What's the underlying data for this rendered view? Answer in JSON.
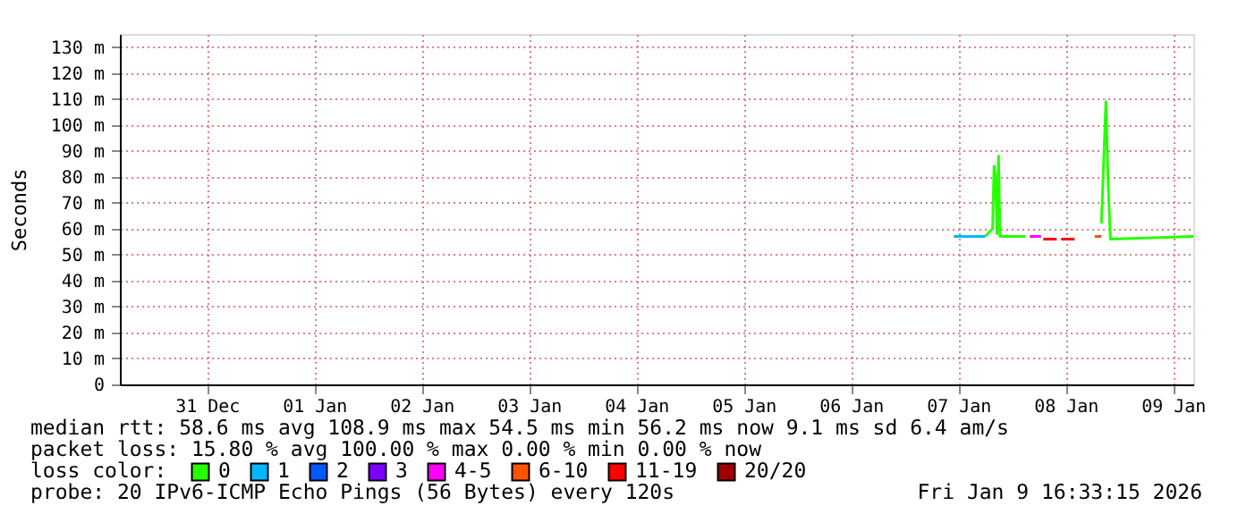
{
  "chart_data": {
    "type": "line",
    "ylabel": "Seconds",
    "xlim": [
      "2025-12-30T16:33",
      "2026-01-09T16:33"
    ],
    "xticks": [
      {
        "value": "2025-12-31T12:00",
        "label": "31 Dec"
      },
      {
        "value": "2026-01-01T12:00",
        "label": "01 Jan"
      },
      {
        "value": "2026-01-02T12:00",
        "label": "02 Jan"
      },
      {
        "value": "2026-01-03T12:00",
        "label": "03 Jan"
      },
      {
        "value": "2026-01-04T12:00",
        "label": "04 Jan"
      },
      {
        "value": "2026-01-05T12:00",
        "label": "05 Jan"
      },
      {
        "value": "2026-01-06T12:00",
        "label": "06 Jan"
      },
      {
        "value": "2026-01-07T12:00",
        "label": "07 Jan"
      },
      {
        "value": "2026-01-08T12:00",
        "label": "08 Jan"
      },
      {
        "value": "2026-01-09T12:00",
        "label": "09 Jan"
      }
    ],
    "ylim": [
      0,
      135
    ],
    "yticks": [
      0,
      {
        "value": 10,
        "label": "10 m"
      },
      {
        "value": 20,
        "label": "20 m"
      },
      {
        "value": 30,
        "label": "30 m"
      },
      {
        "value": 40,
        "label": "40 m"
      },
      {
        "value": 50,
        "label": "50 m"
      },
      {
        "value": 60,
        "label": "60 m"
      },
      {
        "value": 70,
        "label": "70 m"
      },
      {
        "value": 80,
        "label": "80 m"
      },
      {
        "value": 90,
        "label": "90 m"
      },
      {
        "value": 100,
        "label": "100 m"
      },
      {
        "value": 110,
        "label": "110 m"
      },
      {
        "value": 120,
        "label": "120 m"
      },
      {
        "value": 130,
        "label": "130 m"
      }
    ],
    "grid": true,
    "legend": "bottom",
    "legend_title": "loss color:",
    "marker": "none",
    "line_style": "solid",
    "series": [
      {
        "name": "0",
        "color": "#26ff00",
        "x": [
          "2026-01-07T18:00",
          "2026-01-07T19:40",
          "2026-01-07T20:00",
          "2026-01-07T20:20",
          "2026-01-07T20:40",
          "2026-01-07T21:00",
          "2026-01-07T21:20",
          "2026-01-08T03:00",
          null,
          "2026-01-08T20:00",
          "2026-01-08T21:00",
          "2026-01-08T21:30",
          "2026-01-08T22:00",
          "2026-01-09T16:33"
        ],
        "values": [
          57,
          60,
          84,
          80,
          58,
          88,
          57,
          57,
          null,
          62,
          108.9,
          78,
          56,
          57
        ]
      },
      {
        "name": "1",
        "color": "#00b8ff",
        "x": [
          "2026-01-07T11:00",
          "2026-01-07T18:00"
        ],
        "values": [
          57,
          57
        ]
      },
      {
        "name": "2",
        "color": "#0059ff"
      },
      {
        "name": "3",
        "color": "#7e00ff"
      },
      {
        "name": "4-5",
        "color": "#ff00fe",
        "x": [
          "2026-01-08T04:00",
          "2026-01-08T06:30"
        ],
        "values": [
          57,
          57
        ]
      },
      {
        "name": "6-10",
        "color": "#ff5500",
        "x": [
          "2026-01-08T18:30",
          "2026-01-08T20:00"
        ],
        "values": [
          57,
          57
        ]
      },
      {
        "name": "11-19",
        "color": "#ff0000",
        "x": [
          "2026-01-08T07:00",
          "2026-01-08T10:00",
          null,
          "2026-01-08T11:00",
          "2026-01-08T14:00"
        ],
        "values": [
          56,
          56,
          null,
          56,
          56
        ]
      },
      {
        "name": "20/20",
        "color": "#a10000"
      }
    ],
    "annotations": [
      "median rtt:  58.6 ms avg  108.9 ms max  54.5 ms min  56.2 ms now  9.1 ms sd  6.4   am/s",
      "packet loss: 15.80 % avg  100.00 % max  0.00 % min  0.00 % now",
      "probe:       20 IPv6-ICMP Echo Pings (56 Bytes) every 120s",
      "Fri Jan  9 16:33:15 2026"
    ]
  }
}
